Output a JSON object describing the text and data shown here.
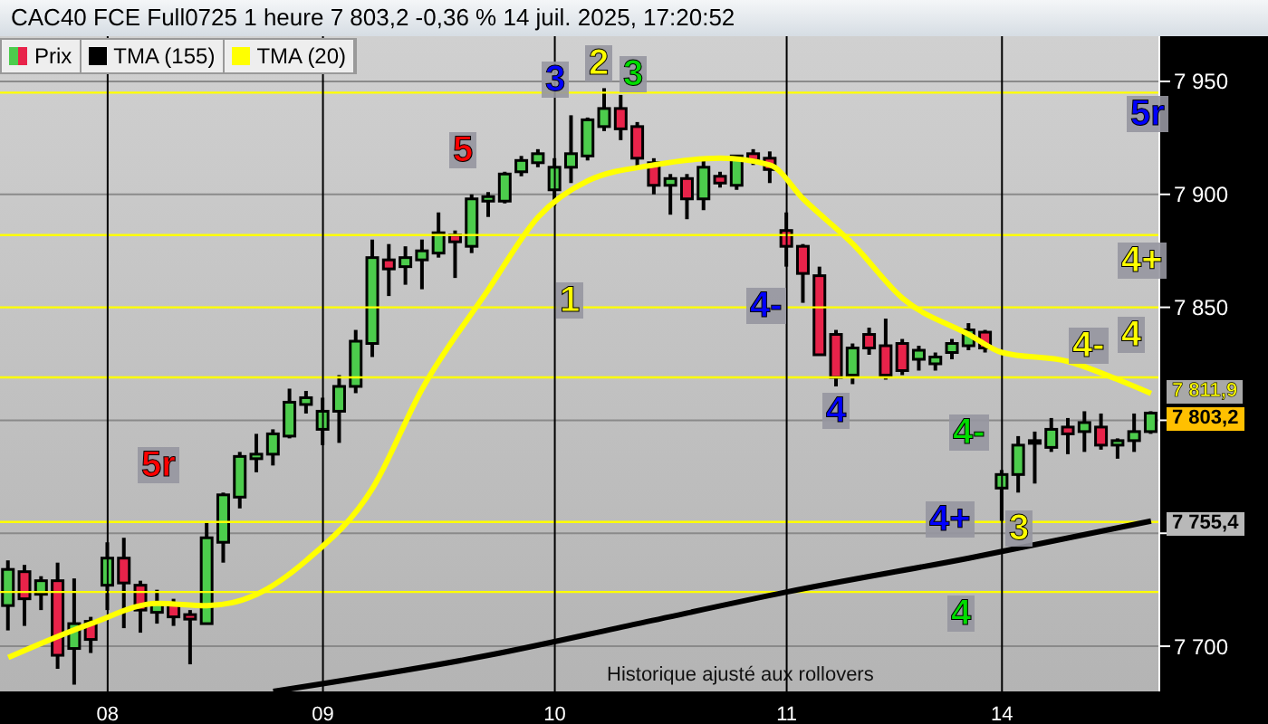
{
  "chart_data": {
    "type": "candlestick",
    "title": "CAC40 FCE Full0725 1 heure 7 803,2 -0,36 % 14 juil. 2025, 17:20:52",
    "categories": [
      null,
      null,
      null,
      null,
      null,
      null,
      "08",
      null,
      null,
      null,
      null,
      null,
      null,
      null,
      null,
      null,
      null,
      null,
      null,
      "09",
      null,
      null,
      null,
      null,
      null,
      null,
      null,
      null,
      null,
      null,
      null,
      null,
      null,
      "10",
      null,
      null,
      null,
      null,
      null,
      null,
      null,
      null,
      null,
      null,
      null,
      null,
      null,
      "11",
      null,
      null,
      null,
      null,
      null,
      null,
      null,
      null,
      null,
      null,
      null,
      null,
      "14",
      null,
      null,
      null,
      null,
      null,
      null,
      null,
      null,
      null
    ],
    "series": [
      {
        "name": "Prix",
        "type": "candlestick",
        "colors": [
          "#4ccc4c",
          "#e8234a",
          "#4ccc4c",
          "#e8234a",
          "#4ccc4c",
          "#e8234a",
          "#4ccc4c",
          "#e8234a",
          "#e8234a",
          "#4ccc4c",
          "#e8234a",
          "#e8234a",
          "#4ccc4c",
          "#4ccc4c",
          "#4ccc4c",
          "#4ccc4c",
          "#4ccc4c",
          "#4ccc4c",
          "#4ccc4c",
          "#4ccc4c",
          "#4ccc4c",
          "#4ccc4c",
          "#4ccc4c",
          "#e8234a",
          "#4ccc4c",
          "#4ccc4c",
          "#4ccc4c",
          "#e8234a",
          "#4ccc4c",
          "#4ccc4c",
          "#4ccc4c",
          "#4ccc4c",
          "#4ccc4c",
          "#4ccc4c",
          "#4ccc4c",
          "#4ccc4c",
          "#4ccc4c",
          "#e8234a",
          "#e8234a",
          "#e8234a",
          "#4ccc4c",
          "#e8234a",
          "#4ccc4c",
          "#e8234a",
          "#4ccc4c",
          "#e8234a",
          "#e8234a",
          "#e8234a",
          "#e8234a",
          "#e8234a",
          "#e8234a",
          "#4ccc4c",
          "#e8234a",
          "#e8234a",
          "#e8234a",
          "#4ccc4c",
          "#4ccc4c",
          "#4ccc4c",
          "#4ccc4c",
          "#e8234a",
          "#4ccc4c",
          "#4ccc4c",
          "#4ccc4c",
          "#4ccc4c",
          "#e8234a",
          "#4ccc4c",
          "#e8234a",
          "#4ccc4c",
          "#4ccc4c",
          "#4ccc4c"
        ],
        "ohlc": [
          [
            7718,
            7738,
            7707,
            7734
          ],
          [
            7733,
            7736,
            7709,
            7721
          ],
          [
            7723,
            7731,
            7716,
            7729
          ],
          [
            7729,
            7737,
            7690,
            7696
          ],
          [
            7699,
            7730,
            7683,
            7710
          ],
          [
            7711,
            7713,
            7697,
            7703
          ],
          [
            7727,
            7746,
            7716,
            7739
          ],
          [
            7739,
            7748,
            7708,
            7728
          ],
          [
            7727,
            7729,
            7706,
            7716
          ],
          [
            7715,
            7725,
            7710,
            7719
          ],
          [
            7719,
            7721,
            7709,
            7713
          ],
          [
            7714,
            7716,
            7692,
            7712
          ],
          [
            7710,
            7755,
            7710,
            7748
          ],
          [
            7746,
            7768,
            7737,
            7767
          ],
          [
            7766,
            7786,
            7761,
            7784
          ],
          [
            7783,
            7794,
            7777,
            7785
          ],
          [
            7785,
            7796,
            7780,
            7794
          ],
          [
            7793,
            7814,
            7792,
            7808
          ],
          [
            7807,
            7813,
            7803,
            7810
          ],
          [
            7796,
            7810,
            7789,
            7804
          ],
          [
            7804,
            7820,
            7790,
            7815
          ],
          [
            7815,
            7840,
            7812,
            7835
          ],
          [
            7834,
            7880,
            7828,
            7872
          ],
          [
            7871,
            7878,
            7855,
            7867
          ],
          [
            7868,
            7877,
            7860,
            7872
          ],
          [
            7871,
            7880,
            7858,
            7875
          ],
          [
            7874,
            7892,
            7872,
            7883
          ],
          [
            7882,
            7884,
            7863,
            7879
          ],
          [
            7877,
            7900,
            7874,
            7898
          ],
          [
            7897,
            7901,
            7890,
            7899
          ],
          [
            7897,
            7910,
            7896,
            7909
          ],
          [
            7910,
            7917,
            7908,
            7915
          ],
          [
            7914,
            7920,
            7912,
            7918
          ],
          [
            7902,
            7916,
            7895,
            7912
          ],
          [
            7912,
            7935,
            7905,
            7918
          ],
          [
            7917,
            7934,
            7915,
            7933
          ],
          [
            7930,
            7947,
            7928,
            7938
          ],
          [
            7938,
            7944,
            7924,
            7929
          ],
          [
            7930,
            7932,
            7912,
            7916
          ],
          [
            7914,
            7916,
            7900,
            7904
          ],
          [
            7904,
            7909,
            7891,
            7907
          ],
          [
            7907,
            7909,
            7889,
            7898
          ],
          [
            7898,
            7915,
            7893,
            7912
          ],
          [
            7908,
            7910,
            7903,
            7905
          ],
          [
            7904,
            7917,
            7902,
            7917
          ],
          [
            7918,
            7920,
            7913,
            7915
          ],
          [
            7916,
            7919,
            7905,
            7911
          ],
          [
            7884,
            7892,
            7868,
            7877
          ],
          [
            7877,
            7878,
            7852,
            7865
          ],
          [
            7864,
            7868,
            7829,
            7829
          ],
          [
            7838,
            7840,
            7815,
            7819
          ],
          [
            7820,
            7834,
            7816,
            7832
          ],
          [
            7838,
            7841,
            7829,
            7832
          ],
          [
            7833,
            7845,
            7818,
            7820
          ],
          [
            7834,
            7836,
            7820,
            7822
          ],
          [
            7827,
            7833,
            7822,
            7831
          ],
          [
            7825,
            7830,
            7822,
            7828
          ],
          [
            7830,
            7836,
            7827,
            7834
          ],
          [
            7833,
            7843,
            7831,
            7840
          ],
          [
            7839,
            7840,
            7830,
            7832
          ],
          [
            7770,
            7778,
            7755,
            7776
          ],
          [
            7776,
            7793,
            7768,
            7789
          ],
          [
            7790,
            7795,
            7772,
            7791
          ],
          [
            7788,
            7801,
            7786,
            7796
          ],
          [
            7797,
            7801,
            7785,
            7794
          ],
          [
            7795,
            7804,
            7786,
            7799
          ],
          [
            7797,
            7803,
            7787,
            7789
          ],
          [
            7789,
            7792,
            7783,
            7791
          ],
          [
            7791,
            7803,
            7786,
            7795
          ],
          [
            7795,
            7804,
            7794,
            7803.2
          ]
        ]
      },
      {
        "name": "TMA (155)",
        "type": "line",
        "color": "#000000",
        "values": [
          null,
          null,
          null,
          null,
          null,
          null,
          null,
          null,
          null,
          null,
          null,
          null,
          null,
          null,
          null,
          null,
          7680,
          null,
          null,
          null,
          null,
          null,
          null,
          null,
          null,
          null,
          null,
          null,
          null,
          7696,
          null,
          null,
          null,
          null,
          null,
          null,
          null,
          null,
          7710,
          null,
          null,
          null,
          null,
          null,
          null,
          null,
          null,
          7724,
          null,
          null,
          null,
          null,
          null,
          null,
          null,
          null,
          null,
          null,
          7739,
          null,
          null,
          null,
          null,
          null,
          null,
          null,
          null,
          null,
          null,
          7755.4
        ]
      },
      {
        "name": "TMA (20)",
        "type": "line",
        "color": "#ffff00",
        "values": [
          7695,
          null,
          null,
          null,
          null,
          7710,
          null,
          null,
          null,
          7719,
          null,
          null,
          7718,
          null,
          null,
          7723,
          null,
          null,
          7738,
          null,
          null,
          null,
          7770,
          null,
          null,
          7814,
          null,
          null,
          null,
          7858,
          null,
          null,
          7890,
          null,
          null,
          7906,
          null,
          null,
          null,
          7913,
          null,
          null,
          null,
          7916,
          null,
          null,
          7913,
          null,
          7898,
          null,
          null,
          7878,
          null,
          null,
          7854,
          null,
          null,
          null,
          7838,
          null,
          7830,
          null,
          null,
          null,
          7826,
          null,
          null,
          7818,
          null,
          7811.9
        ]
      }
    ],
    "ylim": [
      7680,
      7970
    ],
    "yticks": [
      7700,
      {
        "value": 7750,
        "label": null
      },
      {
        "value": 7800,
        "label": null
      },
      7850,
      7900,
      7950
    ],
    "grid": true,
    "legend": "top left",
    "ref_lines": [
      {
        "axis": "y",
        "value": 7945,
        "color": "#ffff00"
      },
      {
        "axis": "y",
        "value": 7882,
        "color": "#ffff00"
      },
      {
        "axis": "y",
        "value": 7850,
        "color": "#ffff00"
      },
      {
        "axis": "y",
        "value": 7819,
        "color": "#ffff00"
      },
      {
        "axis": "y",
        "value": 7755,
        "color": "#ffff00"
      },
      {
        "axis": "y",
        "value": 7724,
        "color": "#ffff00"
      }
    ],
    "annotations": [
      "5r",
      "5",
      "3",
      "2",
      "3",
      "1",
      "4-",
      "4",
      "4+",
      "3",
      "4-",
      "4",
      "5r",
      "4+",
      "4",
      "4-",
      "7 811,9",
      "7 803,2",
      "7 755,4",
      "Historique ajusté aux rollovers"
    ]
  }
}
